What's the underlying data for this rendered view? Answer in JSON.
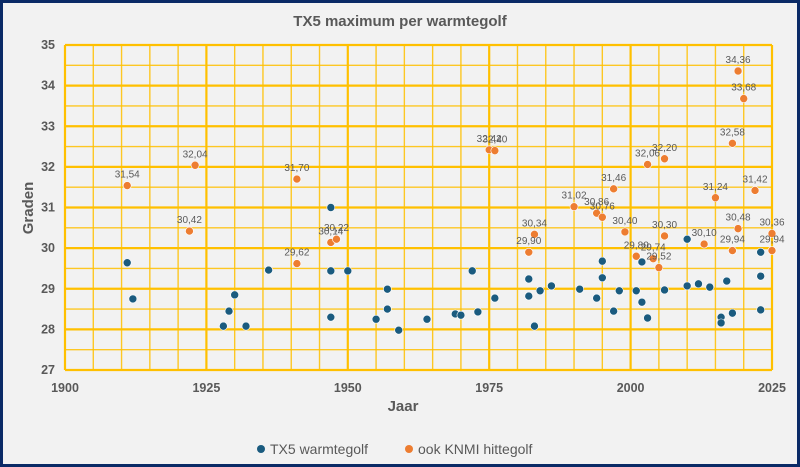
{
  "chart_data": {
    "type": "scatter",
    "title": "TX5 maximum per warmtegolf",
    "xlabel": "Jaar",
    "ylabel": "Graden",
    "xlim": [
      1900,
      2025
    ],
    "ylim": [
      27,
      35
    ],
    "x_ticks": [
      1900,
      1925,
      1950,
      1975,
      2000,
      2025
    ],
    "y_ticks": [
      27,
      28,
      29,
      30,
      31,
      32,
      33,
      34,
      35
    ],
    "x_minor_step": 5,
    "y_minor_step": 0.5,
    "grid": true,
    "legend_position": "bottom",
    "colors": {
      "grid": "#ffc000",
      "series1": "#1a5b7f",
      "series2": "#ed7d31",
      "text": "#595959"
    },
    "series": [
      {
        "name": "TX5 warmtegolf",
        "points": [
          [
            1911,
            29.64
          ],
          [
            1912,
            28.75
          ],
          [
            1928,
            28.08
          ],
          [
            1929,
            28.45
          ],
          [
            1930,
            28.85
          ],
          [
            1932,
            28.08
          ],
          [
            1936,
            29.46
          ],
          [
            1947,
            31.0
          ],
          [
            1947,
            29.44
          ],
          [
            1947,
            28.3
          ],
          [
            1950,
            29.44
          ],
          [
            1955,
            28.25
          ],
          [
            1957,
            28.99
          ],
          [
            1957,
            28.5
          ],
          [
            1959,
            27.98
          ],
          [
            1964,
            28.25
          ],
          [
            1969,
            28.38
          ],
          [
            1970,
            28.35
          ],
          [
            1972,
            29.44
          ],
          [
            1973,
            28.43
          ],
          [
            1976,
            28.77
          ],
          [
            1982,
            29.24
          ],
          [
            1982,
            28.82
          ],
          [
            1983,
            28.08
          ],
          [
            1984,
            28.95
          ],
          [
            1986,
            29.07
          ],
          [
            1991,
            28.99
          ],
          [
            1994,
            28.77
          ],
          [
            1995,
            29.68
          ],
          [
            1995,
            29.27
          ],
          [
            1997,
            28.45
          ],
          [
            1998,
            28.95
          ],
          [
            2001,
            28.95
          ],
          [
            2002,
            29.66
          ],
          [
            2002,
            28.67
          ],
          [
            2003,
            28.28
          ],
          [
            2006,
            28.97
          ],
          [
            2010,
            30.22
          ],
          [
            2010,
            29.07
          ],
          [
            2012,
            29.12
          ],
          [
            2014,
            29.04
          ],
          [
            2016,
            28.3
          ],
          [
            2016,
            28.16
          ],
          [
            2017,
            29.19
          ],
          [
            2018,
            28.4
          ],
          [
            2023,
            29.9
          ],
          [
            2023,
            29.31
          ],
          [
            2023,
            28.48
          ]
        ]
      },
      {
        "name": "ook KNMI hittegolf",
        "points": [
          [
            1911,
            31.54,
            "31,54"
          ],
          [
            1922,
            30.42,
            "30,42"
          ],
          [
            1923,
            32.04,
            "32,04"
          ],
          [
            1941,
            31.7,
            "31,70"
          ],
          [
            1941,
            29.62,
            "29,62"
          ],
          [
            1947,
            30.14,
            "30,14"
          ],
          [
            1948,
            30.22,
            "30,22"
          ],
          [
            1975,
            32.42,
            "32,42"
          ],
          [
            1976,
            32.4,
            "32,40"
          ],
          [
            1982,
            29.9,
            "29,90"
          ],
          [
            1983,
            30.34,
            "30,34"
          ],
          [
            1990,
            31.02,
            "31,02"
          ],
          [
            1994,
            30.86,
            "30,86"
          ],
          [
            1995,
            30.76,
            "30,76"
          ],
          [
            1997,
            31.46,
            "31,46"
          ],
          [
            1999,
            30.4,
            "30,40"
          ],
          [
            2001,
            29.8,
            "29,80"
          ],
          [
            2003,
            32.06,
            "32,06"
          ],
          [
            2004,
            29.74,
            "29,74"
          ],
          [
            2005,
            29.52,
            "29,52"
          ],
          [
            2006,
            30.3,
            "30,30"
          ],
          [
            2006,
            32.2,
            "32,20"
          ],
          [
            2013,
            30.1,
            "30,10"
          ],
          [
            2015,
            31.24,
            "31,24"
          ],
          [
            2018,
            32.58,
            "32,58"
          ],
          [
            2018,
            29.94,
            "29,94"
          ],
          [
            2019,
            34.36,
            "34,36"
          ],
          [
            2019,
            30.48,
            "30,48"
          ],
          [
            2020,
            33.68,
            "33,68"
          ],
          [
            2022,
            31.42,
            "31,42"
          ],
          [
            2025,
            30.36,
            "30,36"
          ],
          [
            2025,
            29.94,
            "29,94"
          ]
        ]
      }
    ]
  }
}
